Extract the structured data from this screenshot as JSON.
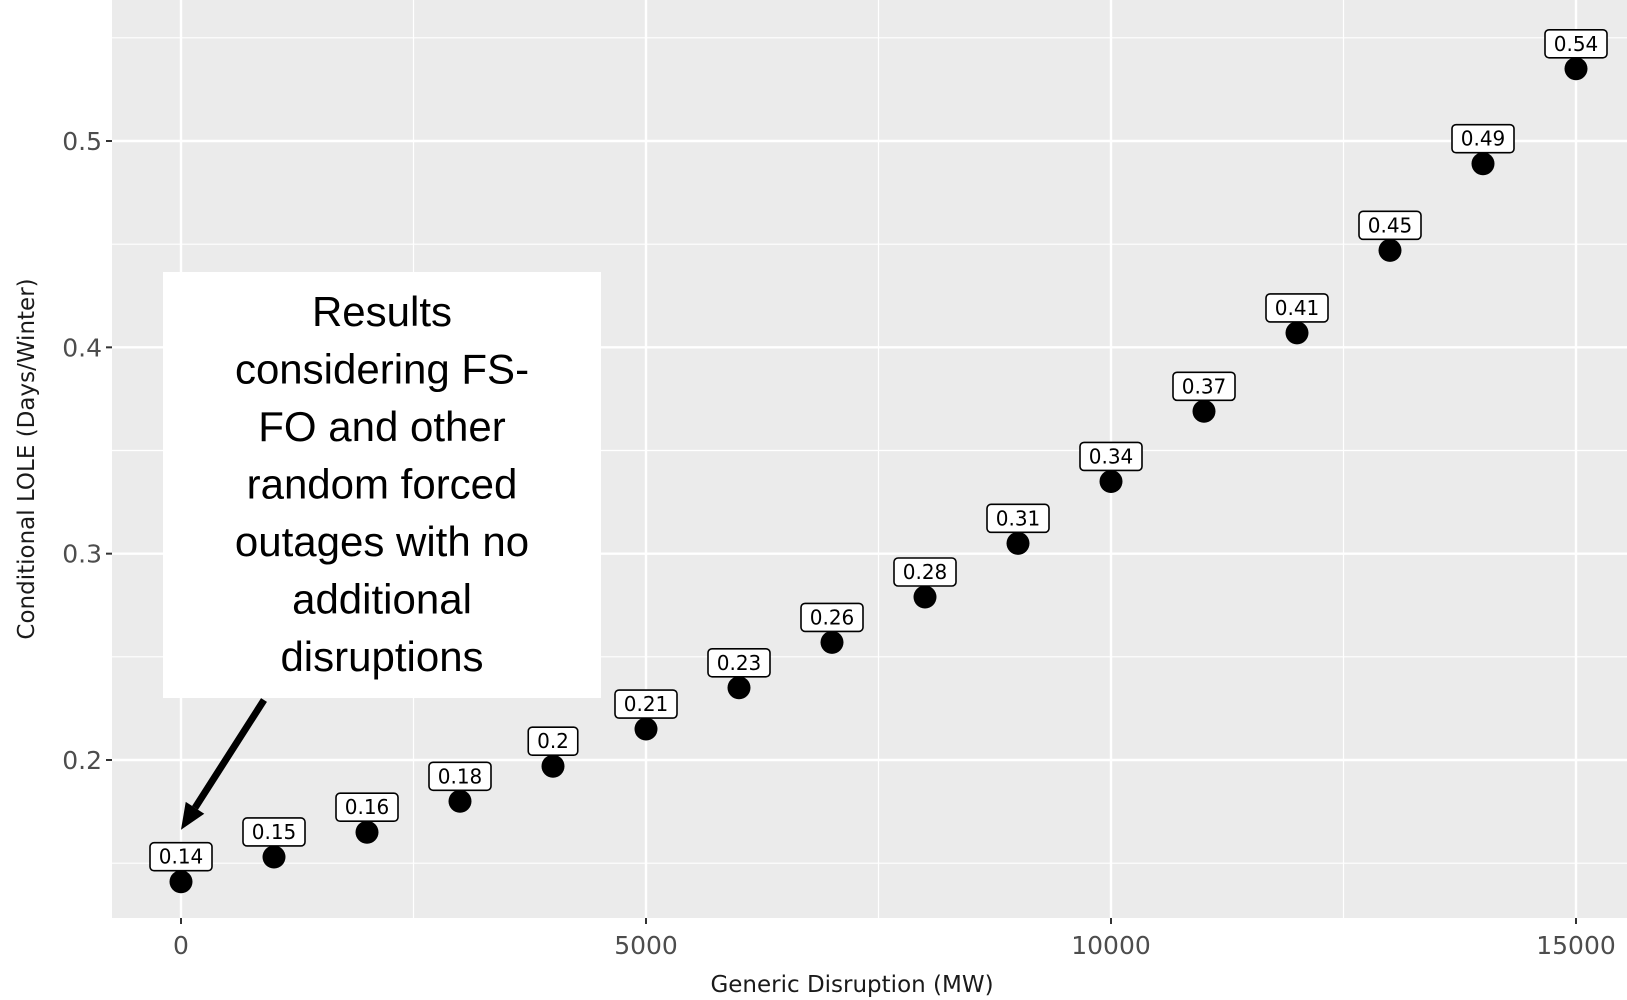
{
  "chart_data": {
    "type": "scatter",
    "title": "",
    "xlabel": "Generic Disruption (MW)",
    "ylabel": "Conditional LOLE (Days/Winter)",
    "xlim": [
      -1500,
      15600
    ],
    "ylim": [
      0.118,
      0.57
    ],
    "x_ticks": [
      0,
      5000,
      10000,
      15000
    ],
    "x_tick_labels": [
      "0",
      "5000",
      "10000",
      "15000"
    ],
    "y_ticks": [
      0.2,
      0.3,
      0.4,
      0.5
    ],
    "y_tick_labels": [
      "0.2",
      "0.3",
      "0.4",
      "0.5"
    ],
    "grid": true,
    "background": "#ebebeb",
    "grid_color": "#ffffff",
    "point_color": "#000000",
    "points": [
      {
        "x": 0,
        "y": 0.141,
        "label": "0.14"
      },
      {
        "x": 1000,
        "y": 0.153,
        "label": "0.15"
      },
      {
        "x": 2000,
        "y": 0.165,
        "label": "0.16"
      },
      {
        "x": 3000,
        "y": 0.18,
        "label": "0.18"
      },
      {
        "x": 4000,
        "y": 0.197,
        "label": "0.2"
      },
      {
        "x": 5000,
        "y": 0.215,
        "label": "0.21"
      },
      {
        "x": 6000,
        "y": 0.235,
        "label": "0.23"
      },
      {
        "x": 7000,
        "y": 0.257,
        "label": "0.26"
      },
      {
        "x": 8000,
        "y": 0.279,
        "label": "0.28"
      },
      {
        "x": 9000,
        "y": 0.305,
        "label": "0.31"
      },
      {
        "x": 10000,
        "y": 0.335,
        "label": "0.34"
      },
      {
        "x": 11000,
        "y": 0.369,
        "label": "0.37"
      },
      {
        "x": 12000,
        "y": 0.407,
        "label": "0.41"
      },
      {
        "x": 13000,
        "y": 0.447,
        "label": "0.45"
      },
      {
        "x": 14000,
        "y": 0.489,
        "label": "0.49"
      },
      {
        "x": 15000,
        "y": 0.535,
        "label": "0.54"
      }
    ],
    "annotations": [
      {
        "text_lines": [
          "Results",
          "considering FS-",
          "FO and other",
          "random forced",
          "outages with no",
          "additional",
          "disruptions"
        ],
        "arrow_target": {
          "x": 0,
          "y": 0.141
        }
      }
    ]
  }
}
